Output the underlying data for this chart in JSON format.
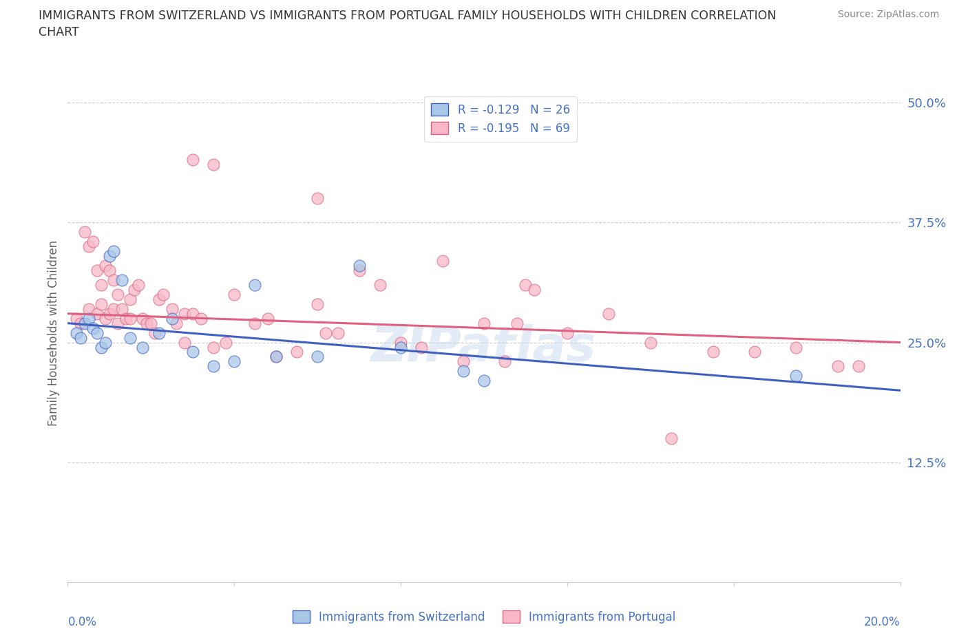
{
  "title": "IMMIGRANTS FROM SWITZERLAND VS IMMIGRANTS FROM PORTUGAL FAMILY HOUSEHOLDS WITH CHILDREN CORRELATION\nCHART",
  "source_text": "Source: ZipAtlas.com",
  "ylabel": "Family Households with Children",
  "xmin": 0.0,
  "xmax": 20.0,
  "ymin": 0.0,
  "ymax": 52.0,
  "yticks": [
    12.5,
    25.0,
    37.5,
    50.0
  ],
  "xticks": [
    0,
    4,
    8,
    12,
    16,
    20
  ],
  "legend_r_switzerland": "R = -0.129",
  "legend_n_switzerland": "N = 26",
  "legend_r_portugal": "R = -0.195",
  "legend_n_portugal": "N = 69",
  "color_switzerland": "#a8c8e8",
  "color_portugal": "#f8b8c8",
  "color_line_switzerland": "#4060c0",
  "color_line_portugal": "#e06080",
  "color_axis": "#4472c4",
  "watermark": "ZIPatlas",
  "switzerland_x": [
    0.2,
    0.3,
    0.4,
    0.5,
    0.6,
    0.7,
    0.8,
    0.9,
    1.0,
    1.1,
    1.3,
    1.5,
    1.8,
    2.2,
    2.5,
    3.0,
    3.5,
    4.0,
    4.5,
    5.0,
    6.0,
    7.0,
    8.0,
    9.5,
    10.0,
    17.5
  ],
  "switzerland_y": [
    26.0,
    25.5,
    27.0,
    27.5,
    26.5,
    26.0,
    24.5,
    25.0,
    34.0,
    34.5,
    31.5,
    25.5,
    24.5,
    26.0,
    27.5,
    24.0,
    22.5,
    23.0,
    31.0,
    23.5,
    23.5,
    33.0,
    24.5,
    22.0,
    21.0,
    21.5
  ],
  "portugal_x": [
    0.2,
    0.3,
    0.4,
    0.5,
    0.5,
    0.6,
    0.7,
    0.7,
    0.8,
    0.8,
    0.9,
    0.9,
    1.0,
    1.0,
    1.1,
    1.1,
    1.2,
    1.2,
    1.3,
    1.4,
    1.5,
    1.5,
    1.6,
    1.7,
    1.8,
    1.9,
    2.0,
    2.1,
    2.2,
    2.3,
    2.5,
    2.6,
    2.8,
    3.0,
    3.0,
    3.2,
    3.5,
    3.8,
    4.0,
    4.5,
    4.8,
    5.0,
    5.5,
    6.0,
    6.0,
    6.5,
    7.0,
    7.5,
    8.0,
    8.5,
    9.0,
    9.5,
    10.0,
    10.5,
    11.0,
    12.0,
    13.0,
    14.0,
    15.5,
    16.5,
    17.5,
    18.5,
    19.0,
    2.8,
    3.5,
    6.2,
    10.8,
    11.2,
    14.5
  ],
  "portugal_y": [
    27.5,
    27.0,
    36.5,
    35.0,
    28.5,
    35.5,
    28.0,
    32.5,
    29.0,
    31.0,
    33.0,
    27.5,
    32.5,
    28.0,
    31.5,
    28.5,
    30.0,
    27.0,
    28.5,
    27.5,
    27.5,
    29.5,
    30.5,
    31.0,
    27.5,
    27.0,
    27.0,
    26.0,
    29.5,
    30.0,
    28.5,
    27.0,
    28.0,
    28.0,
    44.0,
    27.5,
    43.5,
    25.0,
    30.0,
    27.0,
    27.5,
    23.5,
    24.0,
    29.0,
    40.0,
    26.0,
    32.5,
    31.0,
    25.0,
    24.5,
    33.5,
    23.0,
    27.0,
    23.0,
    31.0,
    26.0,
    28.0,
    25.0,
    24.0,
    24.0,
    24.5,
    22.5,
    22.5,
    25.0,
    24.5,
    26.0,
    27.0,
    30.5,
    15.0
  ]
}
